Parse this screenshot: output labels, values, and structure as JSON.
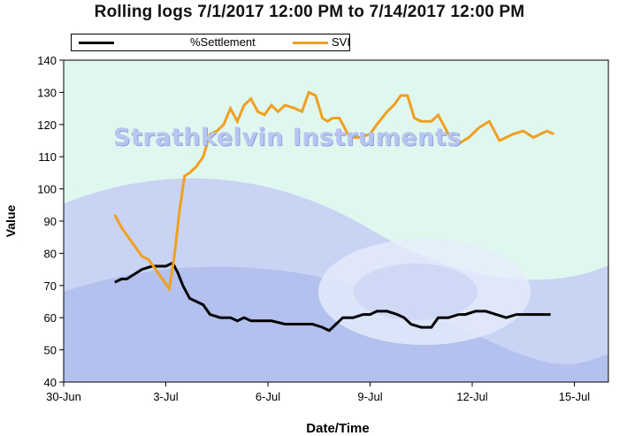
{
  "chart_data": {
    "type": "line",
    "title": "Rolling logs 7/1/2017 12:00 PM to 7/14/2017 12:00 PM",
    "xlabel": "Date/Time",
    "ylabel": "Value",
    "ylim": [
      40,
      140
    ],
    "yticks": [
      40,
      50,
      60,
      70,
      80,
      90,
      100,
      110,
      120,
      130,
      140
    ],
    "xlim_days": [
      0,
      16
    ],
    "xticks": [
      {
        "day": 0,
        "label": "30-Jun"
      },
      {
        "day": 3,
        "label": "3-Jul"
      },
      {
        "day": 6,
        "label": "6-Jul"
      },
      {
        "day": 9,
        "label": "9-Jul"
      },
      {
        "day": 12,
        "label": "12-Jul"
      },
      {
        "day": 15,
        "label": "15-Jul"
      }
    ],
    "grid": false,
    "legend_position": "top-left",
    "series": [
      {
        "name": "%Settlement",
        "color": "#000000",
        "x": [
          1.5,
          1.7,
          1.85,
          2.0,
          2.3,
          2.6,
          2.85,
          3.0,
          3.2,
          3.35,
          3.5,
          3.7,
          3.9,
          4.1,
          4.3,
          4.6,
          4.9,
          5.1,
          5.3,
          5.5,
          5.8,
          6.1,
          6.5,
          6.9,
          7.3,
          7.6,
          7.8,
          8.0,
          8.2,
          8.5,
          8.8,
          9.0,
          9.2,
          9.5,
          9.8,
          10.0,
          10.2,
          10.5,
          10.8,
          11.0,
          11.3,
          11.6,
          11.8,
          12.1,
          12.4,
          12.7,
          13.0,
          13.3,
          13.6,
          13.9,
          14.1,
          14.3
        ],
        "values": [
          71,
          72,
          72,
          73,
          75,
          76,
          76,
          76,
          77,
          74,
          70,
          66,
          65,
          64,
          61,
          60,
          60,
          59,
          60,
          59,
          59,
          59,
          58,
          58,
          58,
          57,
          56,
          58,
          60,
          60,
          61,
          61,
          62,
          62,
          61,
          60,
          58,
          57,
          57,
          60,
          60,
          61,
          61,
          62,
          62,
          61,
          60,
          61,
          61,
          61,
          61,
          61
        ]
      },
      {
        "name": "SVI",
        "color": "#f0a020",
        "x": [
          1.5,
          1.7,
          1.9,
          2.1,
          2.3,
          2.5,
          2.7,
          2.9,
          3.1,
          3.25,
          3.4,
          3.55,
          3.7,
          3.9,
          4.1,
          4.3,
          4.5,
          4.7,
          4.9,
          5.1,
          5.3,
          5.5,
          5.7,
          5.9,
          6.1,
          6.3,
          6.5,
          6.8,
          7.0,
          7.2,
          7.4,
          7.6,
          7.75,
          7.9,
          8.1,
          8.4,
          8.7,
          9.0,
          9.2,
          9.5,
          9.7,
          9.9,
          10.1,
          10.3,
          10.5,
          10.8,
          11.0,
          11.3,
          11.6,
          11.9,
          12.2,
          12.5,
          12.8,
          13.0,
          13.2,
          13.5,
          13.8,
          14.0,
          14.2,
          14.4
        ],
        "values": [
          92,
          88,
          85,
          82,
          79,
          78,
          75,
          72,
          69,
          79,
          93,
          104,
          105,
          107,
          110,
          117,
          118,
          120,
          125,
          121,
          126,
          128,
          124,
          123,
          126,
          124,
          126,
          125,
          124,
          130,
          129,
          122,
          121,
          122,
          122,
          116,
          116,
          117,
          120,
          124,
          126,
          129,
          129,
          122,
          121,
          121,
          123,
          117,
          114,
          116,
          119,
          121,
          115,
          116,
          117,
          118,
          116,
          117,
          118,
          117
        ]
      }
    ]
  }
}
